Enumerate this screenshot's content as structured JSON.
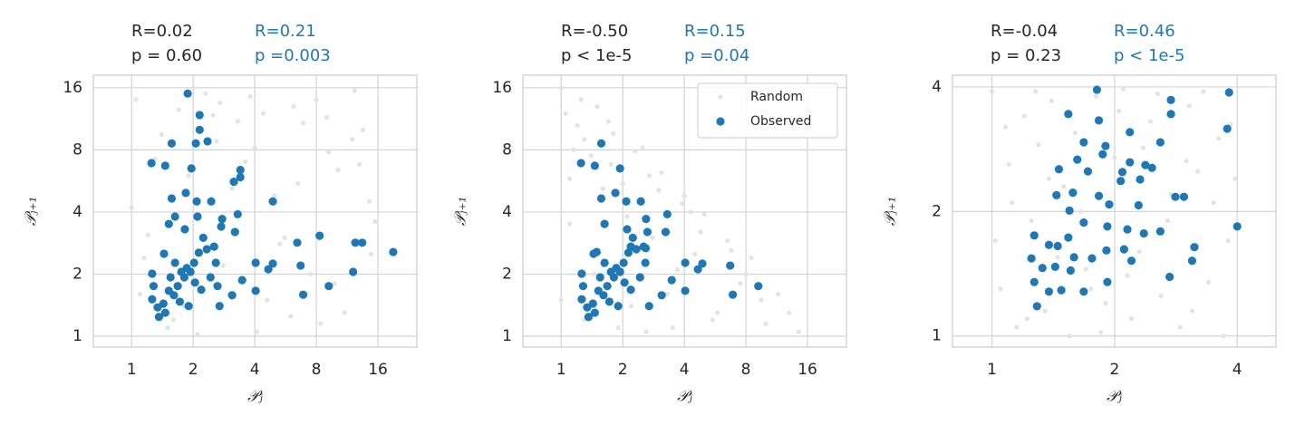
{
  "chart_data": [
    {
      "type": "scatter",
      "xlabel": "𝒫ⱼ",
      "ylabel": "𝒫ⱼ₊₁",
      "xscale": "log",
      "yscale": "log",
      "grid": true,
      "xlim": [
        0.65,
        24.8
      ],
      "ylim": [
        0.886,
        18.4
      ],
      "xticks": [
        1,
        2,
        4,
        8,
        16
      ],
      "yticks": [
        1,
        2,
        4,
        8,
        16
      ],
      "annotations": [
        {
          "lines": [
            "R=0.02",
            "p = 0.60"
          ],
          "color": "#262626"
        },
        {
          "lines": [
            "R=0.21",
            "p =0.003"
          ],
          "color": "#1f77b4"
        }
      ],
      "series": [
        {
          "color": "#e3e3e3",
          "x": [
            1.05,
            1.2,
            1.4,
            1.6,
            1.9,
            2.3,
            2.8,
            3.3,
            4.1,
            5.0,
            6.2,
            7.5,
            9.2,
            11,
            13.5,
            15.5,
            1.1,
            1.3,
            1.7,
            2.1,
            2.6,
            3.1,
            3.8,
            4.6,
            5.6,
            6.9,
            8.4,
            10.2,
            12.3,
            14.8,
            1.0,
            1.5,
            2.0,
            2.5,
            3.0,
            3.6,
            4.4,
            5.3,
            6.5,
            8.0,
            9.8,
            12,
            14.5,
            1.15,
            1.8,
            2.7,
            4.0,
            6.0,
            9.0,
            13.0
          ],
          "y": [
            14,
            3.1,
            9.5,
            1.2,
            6.0,
            15,
            2.2,
            11,
            1.05,
            4.8,
            13,
            2.0,
            7.8,
            1.3,
            10,
            3.6,
            1.6,
            7.2,
            12.5,
            1.02,
            8.8,
            5.2,
            14.5,
            1.5,
            3.0,
            10.8,
            1.15,
            6.4,
            15.5,
            2.5,
            4.2,
            1.1,
            16,
            11.8,
            1.6,
            7.0,
            12,
            2.8,
            5.5,
            14,
            1.8,
            9.0,
            4.5,
            2.4,
            1.4,
            13.5,
            8.2,
            1.25,
            11.5,
            6.8
          ]
        },
        {
          "color": "#1f77b4",
          "x": [
            1.88,
            2.15,
            2.15,
            2.35,
            2.06,
            1.57,
            1.25,
            1.46,
            1.96,
            3.4,
            3.4,
            3.16,
            4.9,
            1.57,
            1.84,
            2.08,
            2.45,
            1.63,
            2.1,
            3.3,
            2.77,
            2.74,
            1.52,
            1.82,
            3.2,
            6.45,
            8.3,
            12.4,
            13.4,
            19.0,
            4.04,
            4.9,
            4.66,
            6.7,
            12.1,
            6.9,
            9.2,
            4.04,
            3.47,
            3.1,
            2.69,
            1.44,
            1.26,
            1.28,
            1.26,
            1.34,
            1.43,
            1.52,
            1.68,
            1.81,
            1.94,
            2.02,
            2.13,
            2.33,
            2.53,
            2.58,
            2.43,
            2.19,
            1.9,
            1.61,
            1.46,
            1.36,
            1.86,
            1.63,
            2.24,
            1.55,
            1.72,
            2.04,
            1.75,
            2.63
          ],
          "y": [
            15.0,
            11.8,
            10.0,
            8.8,
            8.6,
            8.6,
            6.9,
            6.7,
            6.5,
            6.4,
            5.9,
            5.6,
            4.5,
            4.65,
            4.95,
            4.5,
            4.5,
            3.8,
            3.8,
            3.9,
            3.7,
            3.4,
            3.5,
            3.3,
            3.2,
            2.84,
            3.07,
            2.84,
            2.84,
            2.56,
            2.27,
            2.25,
            2.11,
            2.2,
            2.05,
            1.59,
            1.75,
            1.66,
            1.87,
            1.58,
            1.4,
            2.51,
            2.01,
            1.75,
            1.51,
            1.38,
            1.44,
            1.66,
            1.75,
            1.93,
            2.05,
            2.27,
            2.54,
            2.64,
            2.72,
            2.27,
            1.93,
            1.68,
            1.4,
            1.58,
            1.3,
            1.24,
            2.14,
            2.27,
            3.0,
            1.93,
            1.47,
            1.82,
            2.05,
            1.75
          ]
        }
      ]
    },
    {
      "type": "scatter",
      "xlabel": "𝒫ⱼ",
      "ylabel": "𝒫ⱼ₊₁",
      "xscale": "log",
      "yscale": "log",
      "grid": true,
      "legend": "upper right",
      "xlim": [
        0.65,
        24.8
      ],
      "ylim": [
        0.886,
        18.4
      ],
      "xticks": [
        1,
        2,
        4,
        8,
        16
      ],
      "yticks": [
        1,
        2,
        4,
        8,
        16
      ],
      "annotations": [
        {
          "lines": [
            "R=-0.50",
            "p < 1e-5"
          ],
          "color": "#262626"
        },
        {
          "lines": [
            "R=0.15",
            "p =0.04"
          ],
          "color": "#1f77b4"
        }
      ],
      "series": [
        {
          "name": "Random",
          "color": "#e3e3e3",
          "x": [
            1.0,
            1.05,
            1.1,
            1.2,
            1.3,
            1.4,
            1.5,
            1.6,
            1.8,
            2.0,
            2.2,
            2.5,
            2.8,
            3.1,
            3.5,
            4.0,
            4.5,
            5.0,
            5.8,
            6.5,
            7.5,
            8.5,
            10,
            11.5,
            13,
            14.5,
            1.1,
            1.25,
            1.45,
            1.7,
            1.9,
            2.3,
            2.7,
            3.3,
            3.9,
            4.8,
            5.5,
            6.8,
            8,
            9.5,
            1.0,
            1.3,
            1.6,
            2.1,
            2.6,
            3.0,
            3.7,
            4.3,
            1.15,
            1.75
          ],
          "y": [
            16,
            12,
            3.5,
            10.5,
            1.2,
            7.5,
            13,
            2.2,
            9.6,
            5.5,
            1.4,
            8.2,
            3.0,
            6.2,
            1.1,
            4.8,
            2.5,
            3.9,
            1.3,
            2.9,
            1.8,
            2.4,
            1.15,
            1.6,
            1.3,
            1.05,
            5.8,
            14,
            2.0,
            11,
            1.1,
            7.9,
            6.0,
            1.6,
            4.4,
            3.2,
            1.2,
            2.6,
            2.0,
            1.5,
            1.5,
            9.0,
            5.2,
            3.8,
            1.05,
            5.1,
            2.1,
            4.0,
            8.0,
            6.8
          ]
        },
        {
          "name": "Observed",
          "color": "#1f77b4",
          "x": [
            1.57,
            1.25,
            1.46,
            1.94,
            1.57,
            1.84,
            2.08,
            2.45,
            1.63,
            2.6,
            3.3,
            2.1,
            2.64,
            3.24,
            1.49,
            2.19,
            2.59,
            4.04,
            4.9,
            4.66,
            6.7,
            6.9,
            9.2,
            4.04,
            3.47,
            3.1,
            2.69,
            1.44,
            1.26,
            1.28,
            1.26,
            1.34,
            1.43,
            1.52,
            1.68,
            1.81,
            1.94,
            2.02,
            2.13,
            2.33,
            2.53,
            2.58,
            2.43,
            2.19,
            1.9,
            1.61,
            1.46,
            1.36,
            1.86,
            1.63,
            2.24,
            1.55,
            1.72,
            2.04,
            1.75
          ],
          "y": [
            8.6,
            6.9,
            6.7,
            6.5,
            4.65,
            4.95,
            4.5,
            4.5,
            3.5,
            3.7,
            3.9,
            3.3,
            3.2,
            3.2,
            2.56,
            2.72,
            2.67,
            2.27,
            2.25,
            2.11,
            2.2,
            1.59,
            1.75,
            1.66,
            1.87,
            1.58,
            1.4,
            2.51,
            2.01,
            1.75,
            1.51,
            1.38,
            1.44,
            1.66,
            1.75,
            1.93,
            2.05,
            2.27,
            2.54,
            2.64,
            2.72,
            2.27,
            1.93,
            1.68,
            1.4,
            1.58,
            1.3,
            1.24,
            2.14,
            2.27,
            3.0,
            1.93,
            1.47,
            1.82,
            2.05
          ]
        }
      ]
    },
    {
      "type": "scatter",
      "xlabel": "𝒫ⱼ",
      "ylabel": "𝒫ⱼ₊₁",
      "xscale": "log",
      "yscale": "log",
      "grid": true,
      "xlim": [
        0.8,
        4.98
      ],
      "ylim": [
        0.94,
        4.27
      ],
      "xticks": [
        1,
        2,
        4
      ],
      "yticks": [
        1,
        2,
        4
      ],
      "annotations": [
        {
          "lines": [
            "R=-0.04",
            "p = 0.23"
          ],
          "color": "#262626"
        },
        {
          "lines": [
            "R=0.46",
            "p < 1e-5"
          ],
          "color": "#1f77b4"
        }
      ],
      "series": [
        {
          "color": "#e3e3e3",
          "x": [
            1.0,
            1.05,
            1.1,
            1.15,
            1.2,
            1.25,
            1.3,
            1.35,
            1.4,
            1.5,
            1.55,
            1.6,
            1.7,
            1.8,
            1.9,
            2.0,
            2.1,
            2.2,
            2.3,
            2.45,
            2.6,
            2.75,
            2.9,
            3.05,
            3.2,
            3.4,
            3.6,
            3.8,
            3.95,
            1.02,
            1.12,
            1.28,
            1.45,
            1.65,
            1.85,
            2.05,
            2.35,
            2.7,
            3.1,
            3.5,
            3.85,
            1.08,
            1.38,
            1.75,
            2.15,
            2.55,
            3.0,
            3.3,
            3.7,
            1.22
          ],
          "y": [
            3.9,
            1.3,
            2.6,
            1.05,
            3.4,
            1.9,
            2.9,
            1.15,
            3.7,
            2.3,
            1.0,
            3.1,
            1.45,
            3.8,
            1.2,
            2.7,
            3.95,
            1.1,
            1.6,
            3.3,
            1.25,
            2.2,
            1.05,
            3.6,
            2.5,
            1.35,
            3.0,
            1.7,
            2.4,
            1.7,
            2.1,
            3.9,
            1.55,
            2.0,
            1.02,
            3.5,
            2.85,
            1.9,
            1.15,
            2.1,
            3.25,
            3.2,
            2.4,
            1.3,
            1.4,
            3.85,
            2.65,
            3.9,
            1.0,
            1.1
          ]
        },
        {
          "color": "#1f77b4",
          "x": [
            1.81,
            3.82,
            2.75,
            2.75,
            1.54,
            1.83,
            3.78,
            2.18,
            1.68,
            1.9,
            2.59,
            1.87,
            1.62,
            1.46,
            1.72,
            2.18,
            2.38,
            2.47,
            2.09,
            2.07,
            2.31,
            2.82,
            2.96,
            1.44,
            1.58,
            1.83,
            1.94,
            2.29,
            1.55,
            1.68,
            1.92,
            2.15,
            2.36,
            2.59,
            4.0,
            1.54,
            1.27,
            1.38,
            1.45,
            1.59,
            1.76,
            1.91,
            2.11,
            2.2,
            3.14,
            3.1,
            2.73,
            1.25,
            1.33,
            1.43,
            1.56,
            1.27,
            1.48,
            1.68,
            1.92,
            1.29,
            1.38
          ],
          "y": [
            3.94,
            3.88,
            3.72,
            3.44,
            3.44,
            3.32,
            3.17,
            3.11,
            2.94,
            2.88,
            2.94,
            2.75,
            2.67,
            2.53,
            2.5,
            2.63,
            2.59,
            2.55,
            2.49,
            2.37,
            2.39,
            2.17,
            2.17,
            2.19,
            2.22,
            2.18,
            2.08,
            2.07,
            2.01,
            1.88,
            1.84,
            1.81,
            1.77,
            1.79,
            1.84,
            1.73,
            1.75,
            1.66,
            1.65,
            1.55,
            1.54,
            1.61,
            1.62,
            1.52,
            1.64,
            1.52,
            1.39,
            1.54,
            1.46,
            1.47,
            1.44,
            1.35,
            1.29,
            1.28,
            1.35,
            1.18,
            1.28
          ]
        }
      ]
    }
  ]
}
